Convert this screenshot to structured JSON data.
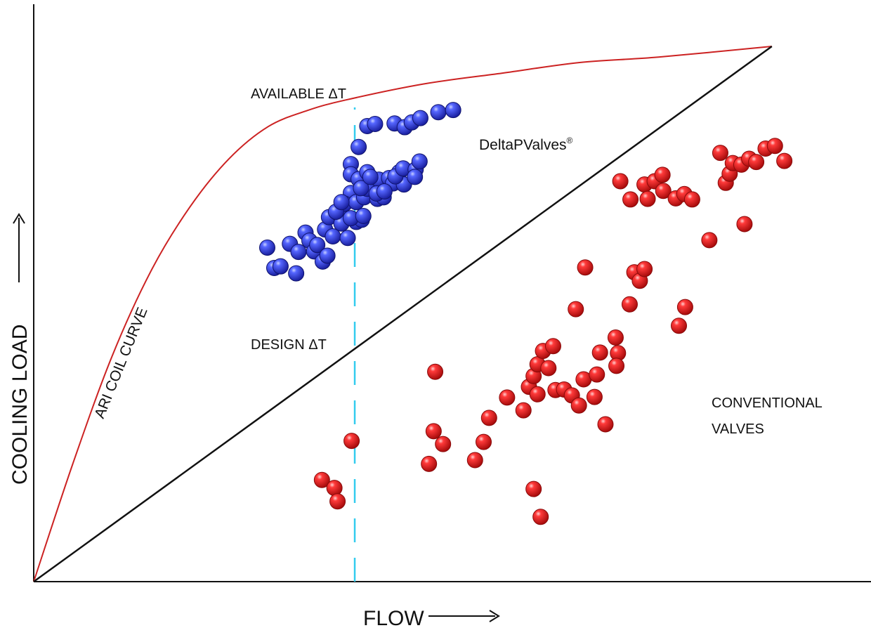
{
  "chart_data": {
    "type": "scatter",
    "title": "",
    "xlabel": "FLOW",
    "ylabel": "COOLING LOAD",
    "xlim": [
      0,
      100
    ],
    "ylim": [
      0,
      100
    ],
    "grid": false,
    "legend": "none",
    "curves": {
      "coil": {
        "name": "ARI COIL CURVE",
        "color": "#cc2222",
        "points": [
          [
            0,
            0
          ],
          [
            5,
            22
          ],
          [
            10,
            42
          ],
          [
            15,
            58
          ],
          [
            20,
            70
          ],
          [
            25,
            79
          ],
          [
            30,
            85
          ],
          [
            35,
            88
          ],
          [
            40,
            90
          ],
          [
            50,
            93
          ],
          [
            60,
            95
          ],
          [
            70,
            97
          ],
          [
            80,
            98
          ],
          [
            94.5,
            100
          ]
        ]
      },
      "design": {
        "name": "DESIGN ΔT",
        "color": "#111111",
        "points": [
          [
            0,
            0
          ],
          [
            94.5,
            100
          ]
        ]
      },
      "marker": {
        "color": "#33ccee",
        "x": 41.1,
        "y_range": [
          0,
          88.6
        ]
      }
    },
    "series": [
      {
        "name": "DeltaPValves®",
        "color": "#2233dd",
        "points": [
          [
            29.9,
            62.4
          ],
          [
            30.8,
            58.6
          ],
          [
            31.6,
            58.9
          ],
          [
            32.8,
            63.1
          ],
          [
            33.6,
            57.6
          ],
          [
            33.9,
            61.6
          ],
          [
            34.8,
            65.2
          ],
          [
            35.3,
            63.7
          ],
          [
            35.9,
            61.7
          ],
          [
            36.3,
            62.9
          ],
          [
            37.0,
            59.8
          ],
          [
            37.3,
            65.8
          ],
          [
            37.8,
            68.1
          ],
          [
            37.6,
            60.9
          ],
          [
            38.3,
            64.5
          ],
          [
            39.0,
            68.8
          ],
          [
            39.4,
            66.9
          ],
          [
            40.2,
            64.2
          ],
          [
            40.6,
            72.6
          ],
          [
            41.3,
            67.2
          ],
          [
            42.0,
            67.6
          ],
          [
            39.8,
            70.6
          ],
          [
            40.6,
            67.9
          ],
          [
            41.3,
            70.9
          ],
          [
            42.3,
            71.8
          ],
          [
            42.7,
            73.4
          ],
          [
            44.0,
            71.5
          ],
          [
            44.2,
            75.1
          ],
          [
            44.8,
            71.8
          ],
          [
            45.5,
            75.4
          ],
          [
            46.0,
            74.4
          ],
          [
            46.8,
            76.5
          ],
          [
            47.4,
            74.2
          ],
          [
            40.6,
            78.0
          ],
          [
            41.6,
            81.2
          ],
          [
            42.7,
            85.1
          ],
          [
            43.7,
            85.5
          ],
          [
            46.2,
            85.6
          ],
          [
            47.5,
            84.9
          ],
          [
            48.4,
            85.8
          ],
          [
            49.5,
            86.6
          ],
          [
            51.8,
            87.7
          ],
          [
            53.7,
            88.1
          ],
          [
            40.6,
            76.1
          ],
          [
            41.6,
            75.2
          ],
          [
            42.7,
            76.5
          ],
          [
            43.9,
            72.5
          ],
          [
            44.9,
            72.9
          ],
          [
            46.3,
            75.7
          ],
          [
            47.3,
            77.2
          ],
          [
            48.9,
            77.0
          ],
          [
            49.4,
            78.5
          ],
          [
            48.8,
            75.6
          ],
          [
            42.2,
            68.3
          ],
          [
            38.7,
            69.1
          ],
          [
            39.4,
            70.9
          ],
          [
            41.9,
            73.5
          ],
          [
            43.1,
            75.6
          ]
        ]
      },
      {
        "name": "CONVENTIONAL VALVES",
        "color": "#ee2222",
        "points": [
          [
            36.9,
            19.0
          ],
          [
            38.5,
            17.5
          ],
          [
            38.9,
            15.0
          ],
          [
            40.7,
            26.3
          ],
          [
            50.6,
            22.0
          ],
          [
            51.2,
            28.1
          ],
          [
            52.4,
            25.7
          ],
          [
            51.4,
            39.2
          ],
          [
            56.5,
            22.7
          ],
          [
            57.6,
            26.1
          ],
          [
            58.3,
            30.6
          ],
          [
            60.6,
            34.4
          ],
          [
            62.7,
            32.0
          ],
          [
            63.4,
            36.4
          ],
          [
            64.0,
            38.4
          ],
          [
            64.5,
            35.0
          ],
          [
            64.5,
            40.6
          ],
          [
            65.2,
            43.1
          ],
          [
            65.9,
            39.9
          ],
          [
            66.5,
            44.0
          ],
          [
            66.8,
            35.8
          ],
          [
            67.9,
            35.9
          ],
          [
            68.9,
            34.8
          ],
          [
            69.4,
            50.9
          ],
          [
            70.4,
            37.8
          ],
          [
            70.6,
            58.7
          ],
          [
            69.8,
            32.9
          ],
          [
            71.8,
            34.5
          ],
          [
            72.1,
            38.7
          ],
          [
            72.5,
            42.8
          ],
          [
            73.2,
            29.4
          ],
          [
            74.5,
            45.6
          ],
          [
            74.8,
            42.7
          ],
          [
            74.6,
            40.3
          ],
          [
            76.3,
            51.8
          ],
          [
            76.9,
            57.8
          ],
          [
            77.6,
            56.2
          ],
          [
            78.2,
            58.4
          ],
          [
            82.6,
            47.8
          ],
          [
            83.4,
            51.3
          ],
          [
            64.0,
            17.3
          ],
          [
            64.9,
            12.1
          ],
          [
            75.1,
            74.8
          ],
          [
            76.4,
            71.4
          ],
          [
            78.2,
            74.2
          ],
          [
            78.6,
            71.5
          ],
          [
            79.5,
            74.8
          ],
          [
            80.5,
            76.0
          ],
          [
            80.6,
            73.0
          ],
          [
            82.2,
            71.6
          ],
          [
            83.3,
            72.4
          ],
          [
            84.3,
            71.4
          ],
          [
            86.5,
            63.8
          ],
          [
            87.9,
            80.1
          ],
          [
            88.6,
            74.5
          ],
          [
            89.1,
            76.2
          ],
          [
            89.5,
            78.2
          ],
          [
            90.6,
            77.9
          ],
          [
            91.0,
            66.8
          ],
          [
            91.6,
            79.0
          ],
          [
            92.5,
            78.4
          ],
          [
            93.7,
            80.9
          ],
          [
            94.9,
            81.4
          ],
          [
            96.1,
            78.6
          ]
        ]
      }
    ],
    "annotations": {
      "available": "AVAILABLE ΔT",
      "design": "DESIGN ΔT",
      "coil": "ARI COIL CURVE",
      "delta_brand": "DeltaPValves",
      "delta_mark": "®",
      "conventional_line1": "CONVENTIONAL",
      "conventional_line2": "VALVES"
    }
  }
}
